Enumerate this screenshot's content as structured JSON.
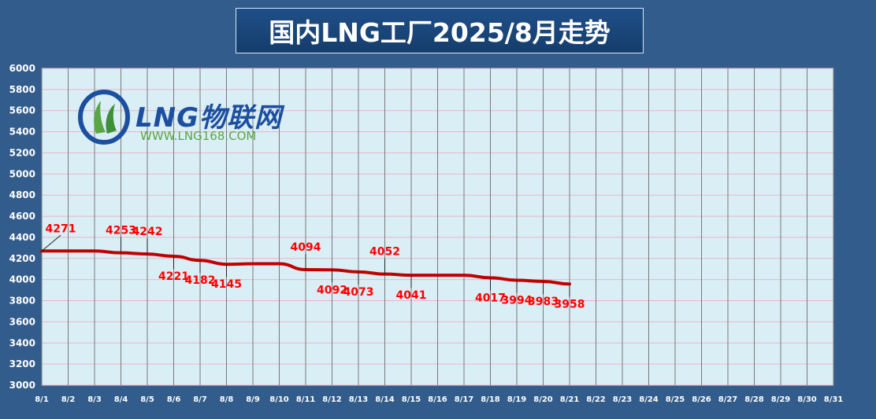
{
  "title": "国内LNG工厂2025/8月走势",
  "logo": {
    "name": "LNG物联网",
    "url": "WWW.LNG168.COM"
  },
  "colors": {
    "background": "#325c8c",
    "plot_background": "#daeef5",
    "line": "#c00000",
    "labels": "#ff0000"
  },
  "chart_data": {
    "type": "line",
    "title": "国内LNG工厂2025/8月走势",
    "xlabel": "",
    "ylabel": "",
    "categories": [
      "8/1",
      "8/2",
      "8/3",
      "8/4",
      "8/5",
      "8/6",
      "8/7",
      "8/8",
      "8/9",
      "8/10",
      "8/11",
      "8/12",
      "8/13",
      "8/14",
      "8/15",
      "8/16",
      "8/17",
      "8/18",
      "8/19",
      "8/20",
      "8/21",
      "8/22",
      "8/23",
      "8/24",
      "8/25",
      "8/26",
      "8/27",
      "8/28",
      "8/29",
      "8/30",
      "8/31"
    ],
    "values": [
      4271,
      4271,
      4271,
      4253,
      4242,
      4221,
      4182,
      4145,
      4150,
      4150,
      4094,
      4092,
      4073,
      4052,
      4041,
      4041,
      4041,
      4017,
      3994,
      3983,
      3958,
      null,
      null,
      null,
      null,
      null,
      null,
      null,
      null,
      null,
      null
    ],
    "ylim": [
      3000,
      6000
    ],
    "yticks": [
      3000,
      3200,
      3400,
      3600,
      3800,
      4000,
      4200,
      4400,
      4600,
      4800,
      5000,
      5200,
      5400,
      5600,
      5800,
      6000
    ],
    "grid": true,
    "data_labels": [
      {
        "index": 0,
        "text": "4271",
        "pos": "above"
      },
      {
        "index": 3,
        "text": "4253",
        "pos": "above"
      },
      {
        "index": 4,
        "text": "4242",
        "pos": "above"
      },
      {
        "index": 5,
        "text": "4221",
        "pos": "below"
      },
      {
        "index": 6,
        "text": "4182",
        "pos": "below"
      },
      {
        "index": 7,
        "text": "4145",
        "pos": "below"
      },
      {
        "index": 10,
        "text": "4094",
        "pos": "above"
      },
      {
        "index": 11,
        "text": "4092",
        "pos": "below"
      },
      {
        "index": 12,
        "text": "4073",
        "pos": "below"
      },
      {
        "index": 13,
        "text": "4052",
        "pos": "above"
      },
      {
        "index": 14,
        "text": "4041",
        "pos": "below"
      },
      {
        "index": 17,
        "text": "4017",
        "pos": "below"
      },
      {
        "index": 18,
        "text": "3994",
        "pos": "below"
      },
      {
        "index": 19,
        "text": "3983",
        "pos": "below"
      },
      {
        "index": 20,
        "text": "3958",
        "pos": "below"
      }
    ]
  }
}
